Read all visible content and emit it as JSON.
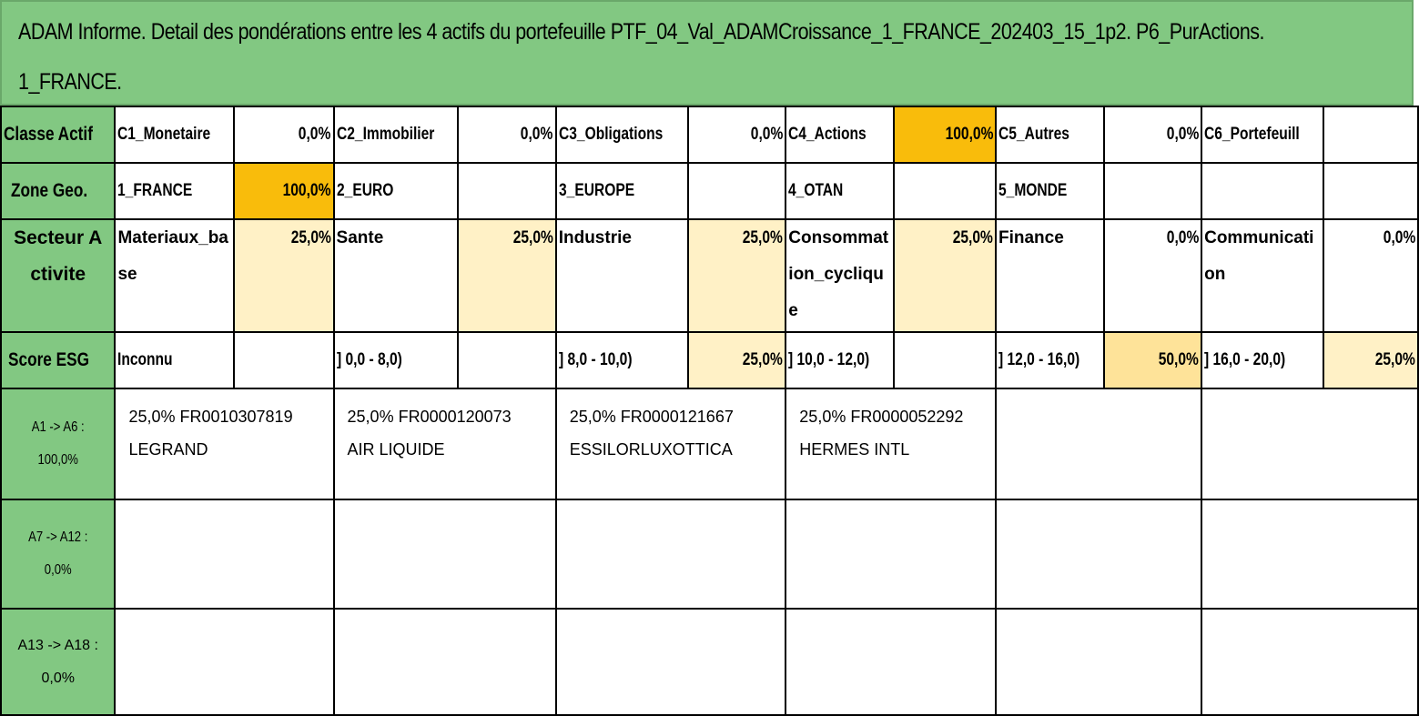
{
  "title": {
    "line1": "ADAM Informe. Detail des pondérations entre les 4 actifs du portefeuille PTF_04_Val_ADAMCroissance_1_FRANCE_202403_15_1p2. P6_PurActions.",
    "line2": "1_FRANCE."
  },
  "classe_actif": {
    "header": "Classe Actif",
    "items": [
      {
        "label": "C1_Monetaire",
        "value": "0,0%"
      },
      {
        "label": "C2_Immobilier",
        "value": "0,0%"
      },
      {
        "label": "C3_Obligations",
        "value": "0,0%"
      },
      {
        "label": "C4_Actions",
        "value": "100,0%"
      },
      {
        "label": "C5_Autres",
        "value": "0,0%"
      },
      {
        "label": "C6_Portefeuill",
        "value": ""
      }
    ]
  },
  "zone_geo": {
    "header": "Zone Geo.",
    "items": [
      {
        "label": "1_FRANCE",
        "value": "100,0%"
      },
      {
        "label": "2_EURO",
        "value": ""
      },
      {
        "label": "3_EUROPE",
        "value": ""
      },
      {
        "label": "4_OTAN",
        "value": ""
      },
      {
        "label": "5_MONDE",
        "value": ""
      },
      {
        "label": "",
        "value": ""
      }
    ]
  },
  "secteur": {
    "header": "Secteur Activite",
    "items": [
      {
        "label": "Materiaux_base",
        "value": "25,0%"
      },
      {
        "label": "Sante",
        "value": "25,0%"
      },
      {
        "label": "Industrie",
        "value": "25,0%"
      },
      {
        "label": "Consommation_cyclique",
        "value": "25,0%"
      },
      {
        "label": "Finance",
        "value": "0,0%"
      },
      {
        "label": "Communication",
        "value": "0,0%"
      }
    ]
  },
  "score_esg": {
    "header": "Score ESG",
    "items": [
      {
        "label": "Inconnu",
        "value": ""
      },
      {
        "label": "] 0,0 - 8,0)",
        "value": ""
      },
      {
        "label": "] 8,0 - 10,0)",
        "value": "25,0%"
      },
      {
        "label": "] 10,0 - 12,0)",
        "value": ""
      },
      {
        "label": "] 12,0 - 16,0)",
        "value": "50,0%"
      },
      {
        "label": "] 16,0 - 20,0)",
        "value": "25,0%"
      }
    ]
  },
  "assets": {
    "group1": {
      "label": "A1 -> A6 : 100,0%",
      "items": [
        {
          "line1": "25,0% FR0010307819",
          "line2": "LEGRAND"
        },
        {
          "line1": "25,0% FR0000120073",
          "line2": "AIR LIQUIDE"
        },
        {
          "line1": "25,0% FR0000121667",
          "line2": "ESSILORLUXOTTICA"
        },
        {
          "line1": "25,0% FR0000052292",
          "line2": "HERMES INTL"
        }
      ]
    },
    "group2": {
      "label": "A7 -> A12 : 0,0%"
    },
    "group3": {
      "label": "A13 -> A18 : 0,0%"
    }
  }
}
